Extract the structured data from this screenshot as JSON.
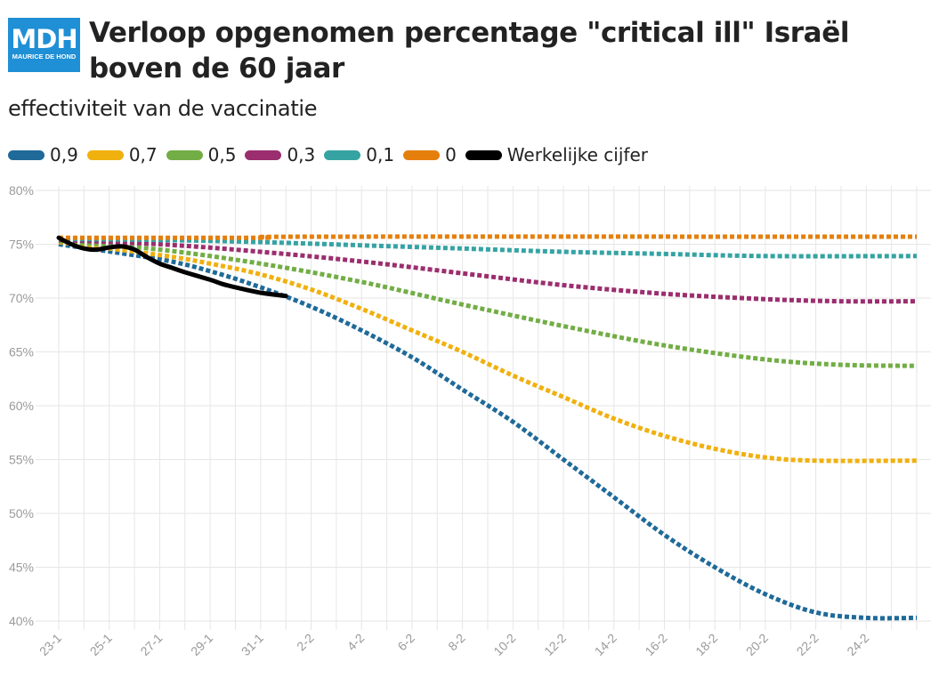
{
  "logo": {
    "main": "MDH",
    "sub": "MAURICE DE HOND"
  },
  "chart_data": {
    "type": "line",
    "title": "Verloop opgenomen percentage \"critical ill\" Israël boven de 60 jaar",
    "subtitle": "effectiviteit van de vaccinatie",
    "legend_position": "top-left",
    "grid": true,
    "y_ticks": [
      "80%",
      "75%",
      "70%",
      "65%",
      "60%",
      "55%",
      "50%",
      "45%",
      "40%"
    ],
    "ylim": [
      40,
      80
    ],
    "x_ticks": [
      "23-1",
      "25-1",
      "27-1",
      "29-1",
      "31-1",
      "2-2",
      "4-2",
      "6-2",
      "8-2",
      "10-2",
      "12-2",
      "14-2",
      "16-2",
      "18-2",
      "20-2",
      "22-2",
      "24-2"
    ],
    "x_days": [
      23,
      57
    ],
    "series": [
      {
        "name": "0,9",
        "color": "#1f6a99",
        "dash": true,
        "points": [
          [
            23,
            75.0
          ],
          [
            27,
            73.6
          ],
          [
            29,
            72.5
          ],
          [
            31,
            71.0
          ],
          [
            33,
            69.2
          ],
          [
            35,
            67.0
          ],
          [
            37,
            64.5
          ],
          [
            39,
            61.5
          ],
          [
            41,
            58.5
          ],
          [
            43,
            55.0
          ],
          [
            45,
            51.5
          ],
          [
            47,
            48.0
          ],
          [
            49,
            45.0
          ],
          [
            51,
            42.5
          ],
          [
            53,
            40.8
          ],
          [
            55,
            40.3
          ],
          [
            57,
            40.3
          ]
        ]
      },
      {
        "name": "0,7",
        "color": "#f0b00e",
        "dash": true,
        "points": [
          [
            23,
            75.2
          ],
          [
            27,
            74.0
          ],
          [
            29,
            73.2
          ],
          [
            31,
            72.2
          ],
          [
            33,
            70.8
          ],
          [
            35,
            69.0
          ],
          [
            37,
            67.0
          ],
          [
            39,
            65.0
          ],
          [
            41,
            62.8
          ],
          [
            43,
            60.8
          ],
          [
            45,
            58.8
          ],
          [
            47,
            57.2
          ],
          [
            49,
            56.0
          ],
          [
            51,
            55.2
          ],
          [
            53,
            54.9
          ],
          [
            57,
            54.9
          ]
        ]
      },
      {
        "name": "0,5",
        "color": "#72ad45",
        "dash": true,
        "points": [
          [
            23,
            75.3
          ],
          [
            27,
            74.5
          ],
          [
            31,
            73.2
          ],
          [
            35,
            71.5
          ],
          [
            39,
            69.4
          ],
          [
            43,
            67.4
          ],
          [
            47,
            65.6
          ],
          [
            51,
            64.3
          ],
          [
            54,
            63.8
          ],
          [
            57,
            63.7
          ]
        ]
      },
      {
        "name": "0,3",
        "color": "#9b2e6e",
        "dash": true,
        "points": [
          [
            23,
            75.4
          ],
          [
            27,
            75.0
          ],
          [
            31,
            74.3
          ],
          [
            35,
            73.4
          ],
          [
            39,
            72.3
          ],
          [
            43,
            71.2
          ],
          [
            47,
            70.4
          ],
          [
            51,
            69.9
          ],
          [
            54,
            69.7
          ],
          [
            57,
            69.7
          ]
        ]
      },
      {
        "name": "0,1",
        "color": "#36a3a3",
        "dash": true,
        "points": [
          [
            23,
            75.5
          ],
          [
            27,
            75.4
          ],
          [
            31,
            75.2
          ],
          [
            35,
            74.9
          ],
          [
            39,
            74.6
          ],
          [
            43,
            74.3
          ],
          [
            47,
            74.1
          ],
          [
            51,
            73.9
          ],
          [
            57,
            73.9
          ]
        ]
      },
      {
        "name": "0",
        "color": "#e57f0c",
        "dash": true,
        "points": [
          [
            23,
            75.6
          ],
          [
            31,
            75.6
          ],
          [
            33,
            75.7
          ],
          [
            57,
            75.7
          ]
        ]
      },
      {
        "name": "Werkelijke cijfer",
        "color": "#000000",
        "dash": false,
        "points": [
          [
            23,
            75.6
          ],
          [
            23.5,
            75.0
          ],
          [
            24,
            74.6
          ],
          [
            24.5,
            74.5
          ],
          [
            25,
            74.7
          ],
          [
            25.5,
            74.8
          ],
          [
            26,
            74.5
          ],
          [
            26.5,
            73.8
          ],
          [
            27,
            73.2
          ],
          [
            27.5,
            72.8
          ],
          [
            28,
            72.4
          ],
          [
            29,
            71.7
          ],
          [
            29.5,
            71.3
          ],
          [
            30,
            71.0
          ],
          [
            31,
            70.5
          ],
          [
            32,
            70.2
          ]
        ]
      }
    ]
  }
}
